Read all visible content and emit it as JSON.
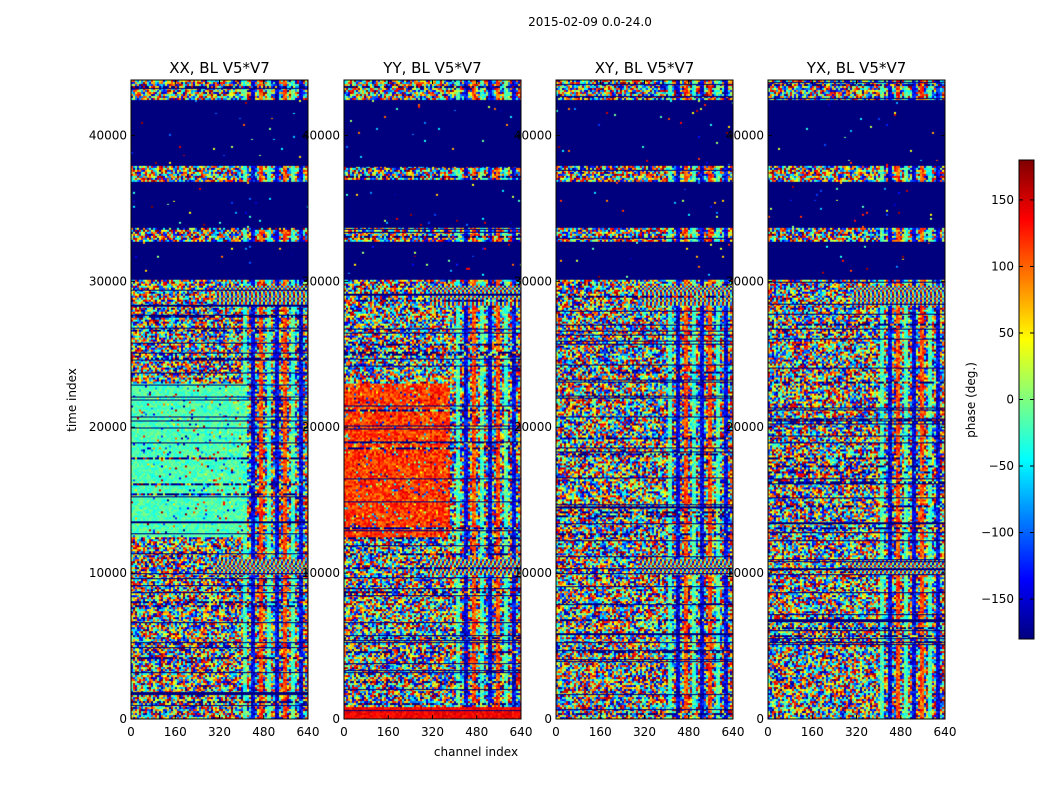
{
  "figure": {
    "suptitle": "2015-02-09 0.0-24.0"
  },
  "chart_data": {
    "type": "heatmap",
    "panels": [
      {
        "title": "XX, BL V5*V7",
        "style": "xx"
      },
      {
        "title": "YY, BL V5*V7",
        "style": "yy"
      },
      {
        "title": "XY, BL V5*V7",
        "style": "xy"
      },
      {
        "title": "YX, BL V5*V7",
        "style": "yx"
      }
    ],
    "xlabel": "channel index",
    "ylabel": "time index",
    "xlim": [
      0,
      640
    ],
    "ylim": [
      0,
      43800
    ],
    "xticks": [
      0,
      160,
      320,
      480,
      640
    ],
    "yticks": [
      0,
      10000,
      20000,
      30000,
      40000
    ],
    "empty_time_bands": [
      [
        30200,
        32800
      ],
      [
        33700,
        36900
      ],
      [
        37900,
        42400
      ]
    ],
    "fringe_time_bands": [
      [
        28400,
        29800
      ],
      [
        9900,
        11000
      ]
    ],
    "colorbar": {
      "label": "phase (deg.)",
      "range": [
        -180,
        180
      ],
      "ticks": [
        150,
        100,
        50,
        0,
        -50,
        -100,
        -150
      ],
      "colormap": [
        "#00007f",
        "#0000ff",
        "#007fff",
        "#00ffff",
        "#7fff7f",
        "#ffff00",
        "#ff7f00",
        "#ff0000",
        "#7f0000"
      ]
    }
  }
}
